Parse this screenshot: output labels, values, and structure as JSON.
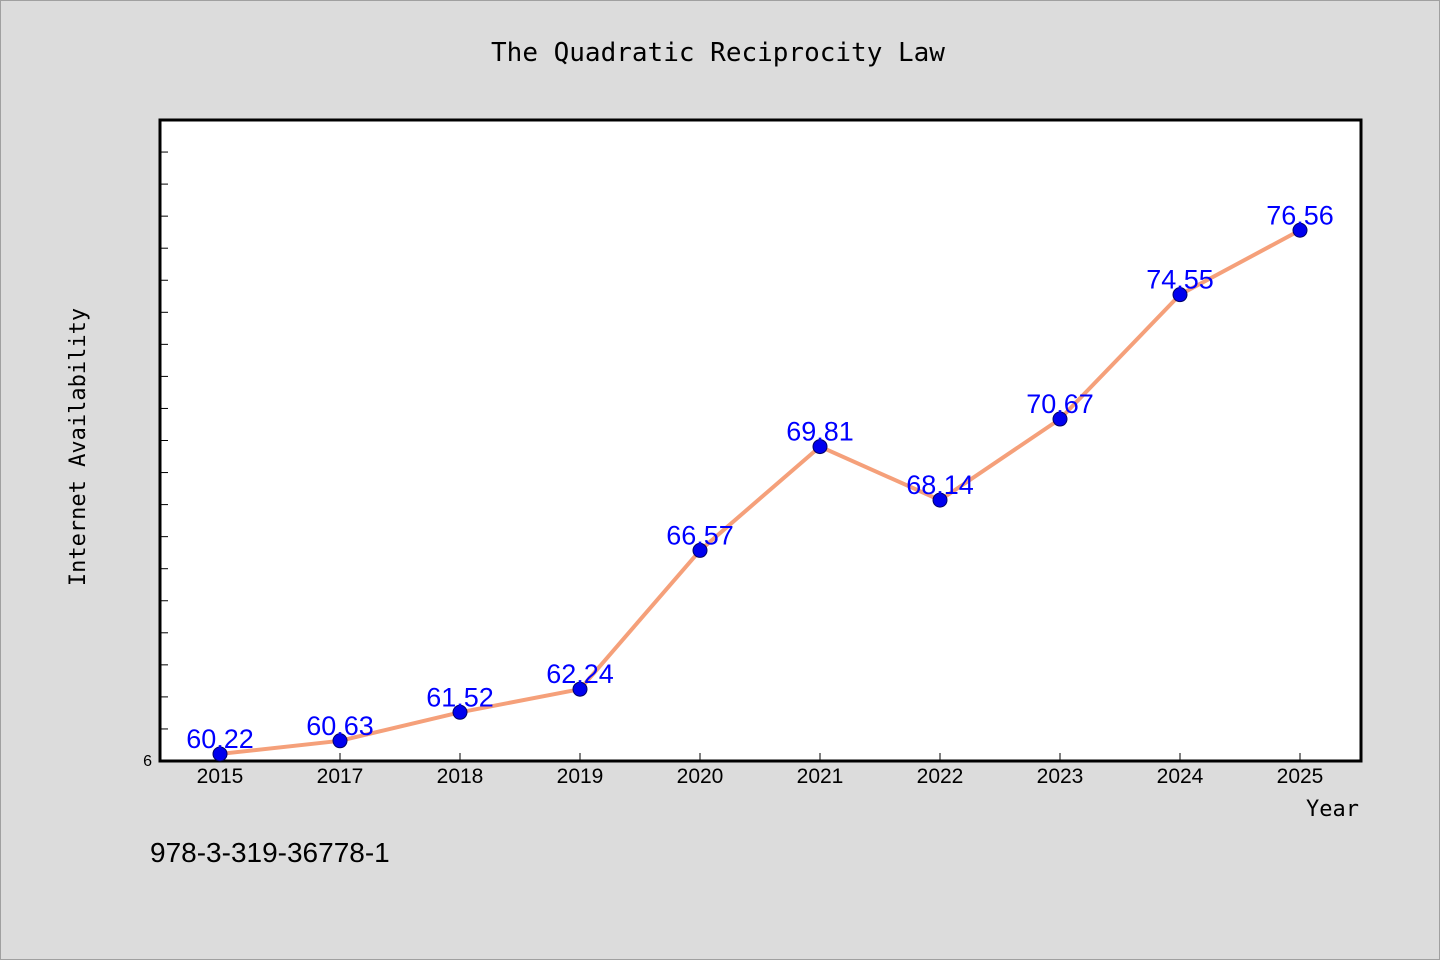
{
  "chart_data": {
    "type": "line",
    "title": "The Quadratic Reciprocity Law",
    "xlabel": "Year",
    "ylabel": "Internet Availability",
    "categories": [
      "2015",
      "2017",
      "2018",
      "2019",
      "2020",
      "2021",
      "2022",
      "2023",
      "2024",
      "2025"
    ],
    "series": [
      {
        "values": [
          60.22,
          60.63,
          61.52,
          62.24,
          66.57,
          69.81,
          68.14,
          70.67,
          74.55,
          76.56
        ],
        "data_labels": [
          "60.22",
          "60.63",
          "61.52",
          "62.24",
          "66.57",
          "69.81",
          "68.14",
          "70.67",
          "74.55",
          "76.56"
        ]
      }
    ],
    "ylim": [
      60,
      80
    ],
    "y_tick_label": "6",
    "y_minor_tick_step": 1,
    "grid": false,
    "legend": "none",
    "colors": {
      "line": "#f5a07a",
      "marker": "#0000ee",
      "marker_edge": "#000066",
      "data_label": "#0000ff",
      "plot_background": "#ffffff",
      "figure_background": "#dcdcdc"
    }
  },
  "footer": {
    "text": "978-3-319-36778-1"
  }
}
